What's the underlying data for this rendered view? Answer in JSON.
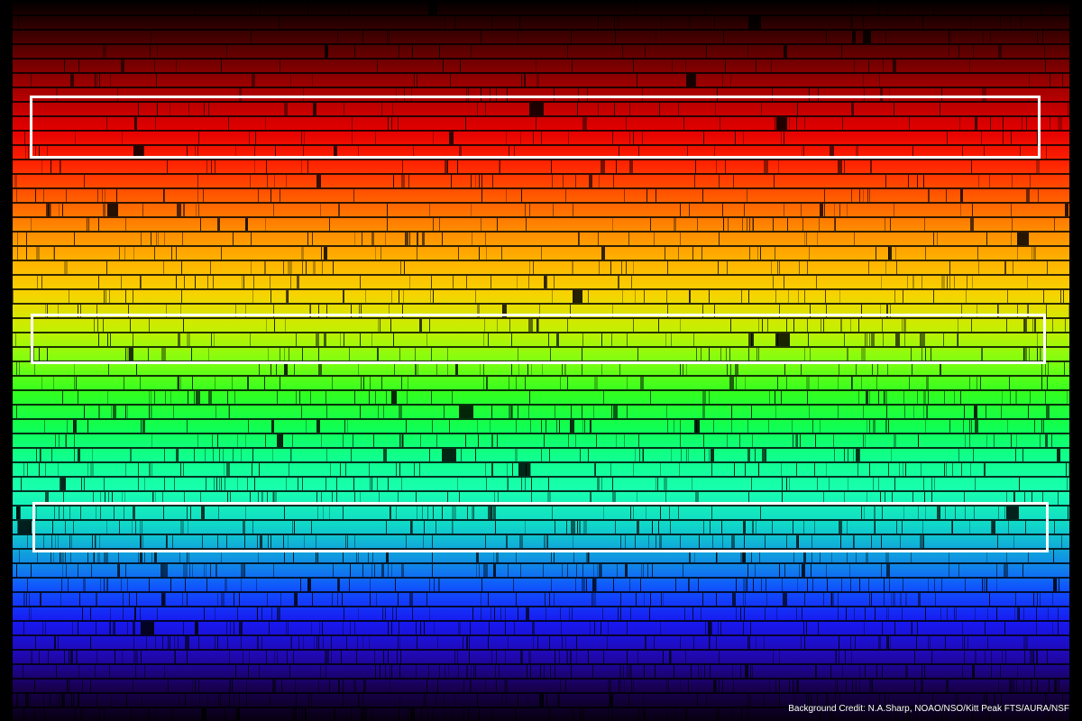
{
  "image": {
    "subject": "solar-spectrum",
    "background_color": "#000000",
    "highlight_color": "#ffffff",
    "band_colors": [
      "#000000",
      "#3a0000",
      "#7a0000",
      "#b40000",
      "#e40000",
      "#ff2400",
      "#ff5a00",
      "#ff8a00",
      "#ffb400",
      "#f6d400",
      "#c8ee00",
      "#80ff10",
      "#30ff20",
      "#10ff50",
      "#10ff90",
      "#18ffb0",
      "#10d8c8",
      "#1098e0",
      "#1050ff",
      "#1818f0",
      "#2008b0",
      "#180050",
      "#080010"
    ],
    "highlight_regions": [
      {
        "name": "red-region"
      },
      {
        "name": "green-region"
      },
      {
        "name": "cyan-region"
      }
    ]
  },
  "credit": "Background Credit: N.A.Sharp, NOAO/NSO/Kitt Peak FTS/AURA/NSF"
}
